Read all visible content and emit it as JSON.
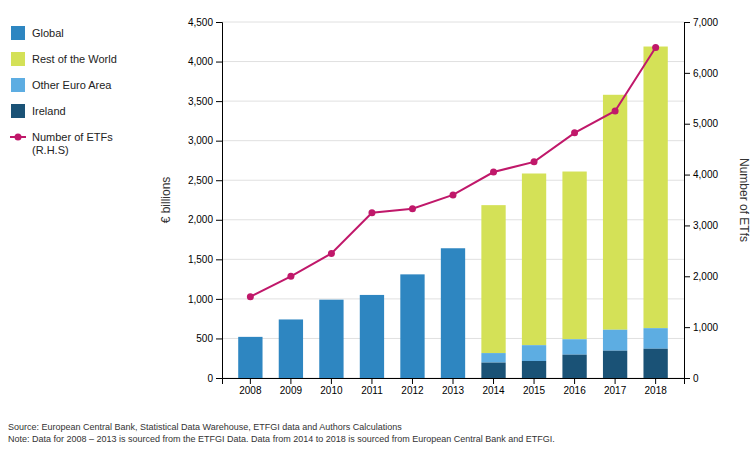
{
  "chart_data": {
    "type": "bar",
    "stacked": true,
    "categories": [
      "2008",
      "2009",
      "2010",
      "2011",
      "2012",
      "2013",
      "2014",
      "2015",
      "2016",
      "2017",
      "2018"
    ],
    "series": [
      {
        "name": "Global",
        "color": "#2e86c1",
        "values": [
          520,
          740,
          990,
          1050,
          1310,
          1640,
          0,
          0,
          0,
          0,
          0
        ]
      },
      {
        "name": "Rest of the World",
        "color": "#d4e157",
        "values": [
          0,
          0,
          0,
          0,
          0,
          0,
          1870,
          2170,
          2120,
          2970,
          3560
        ]
      },
      {
        "name": "Other Euro Area",
        "color": "#5dade2",
        "values": [
          0,
          0,
          0,
          0,
          0,
          0,
          120,
          200,
          195,
          265,
          260
        ]
      },
      {
        "name": "Ireland",
        "color": "#1a5276",
        "values": [
          0,
          0,
          0,
          0,
          0,
          0,
          195,
          215,
          295,
          345,
          370
        ]
      },
      {
        "name": "Number of ETFs\n(R.H.S)",
        "color": "#c0186a",
        "type": "line",
        "marker": "circle",
        "axis": "y2",
        "values": [
          1600,
          2000,
          2450,
          3250,
          3330,
          3600,
          4050,
          4250,
          4820,
          5250,
          6500
        ]
      }
    ],
    "y_label": "€ billions",
    "y2_label": "Number of ETfs",
    "ylim": [
      0,
      4500
    ],
    "yticks": [
      0,
      500,
      {
        "value": 1000,
        "label": "1,000"
      },
      {
        "value": 1500,
        "label": "1,500"
      },
      {
        "value": 2000,
        "label": "2,000"
      },
      {
        "value": 2500,
        "label": "2,500"
      },
      {
        "value": 3000,
        "label": "3,000"
      },
      {
        "value": 3500,
        "label": "3,500"
      },
      {
        "value": 4000,
        "label": "4,000"
      },
      {
        "value": 4500,
        "label": "4,500"
      }
    ],
    "y2lim": [
      0,
      7000
    ],
    "y2ticks": [
      0,
      {
        "value": 1000,
        "label": "1,000"
      },
      {
        "value": 2000,
        "label": "2,000"
      },
      {
        "value": 3000,
        "label": "3,000"
      },
      {
        "value": 4000,
        "label": "4,000"
      },
      {
        "value": 5000,
        "label": "5,000"
      },
      {
        "value": 6000,
        "label": "6,000"
      },
      {
        "value": 7000,
        "label": "7,000"
      }
    ],
    "grid": true,
    "legend": "left",
    "annotations": [
      "Source: European Central Bank, Statistical Data Warehouse, ETFGI data and Authors Calculations\nNote: Data for 2008 – 2013 is sourced from the ETFGI Data. Data from 2014 to 2018 is sourced from European Central Bank and ETFGI."
    ]
  }
}
